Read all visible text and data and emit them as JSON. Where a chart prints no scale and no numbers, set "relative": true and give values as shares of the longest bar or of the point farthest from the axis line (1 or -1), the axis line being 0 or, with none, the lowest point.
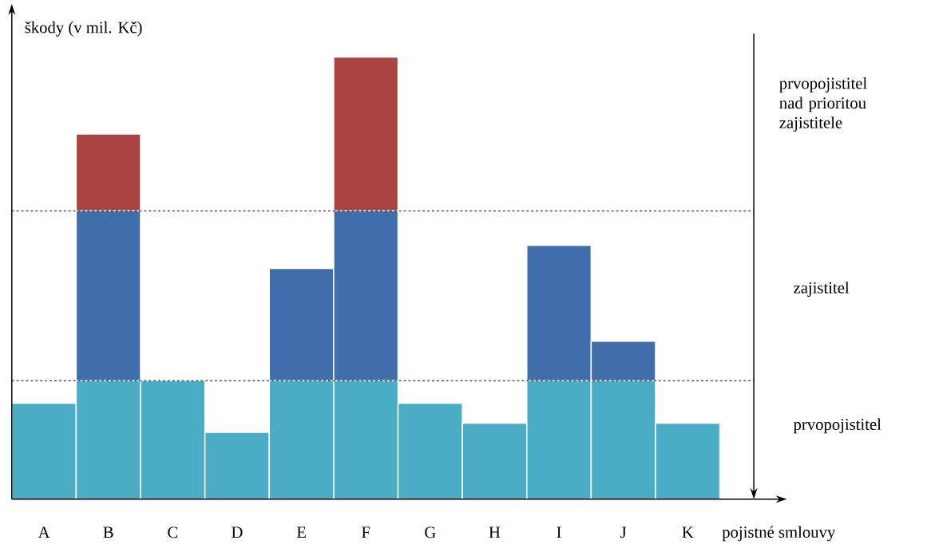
{
  "chart_data": {
    "type": "bar",
    "stacked": true,
    "relative": true,
    "xlabel": "pojistné smlouvy",
    "ylabel": "škody (v mil. Kč)",
    "categories": [
      "A",
      "B",
      "C",
      "D",
      "E",
      "F",
      "G",
      "H",
      "I",
      "J",
      "K"
    ],
    "series": [
      {
        "name": "prvopojistitel",
        "color": "#4bacc6",
        "values": [
          0.217,
          0.268,
          0.268,
          0.151,
          0.268,
          0.268,
          0.217,
          0.172,
          0.268,
          0.268,
          0.172
        ]
      },
      {
        "name": "zajistitel",
        "color": "#3f6eab",
        "values": [
          null,
          0.384,
          null,
          null,
          0.254,
          0.384,
          null,
          null,
          0.306,
          0.089,
          null
        ]
      },
      {
        "name": "prvopojistitel nad prioritou zajistitele",
        "color": "#a94442",
        "values": [
          null,
          0.174,
          null,
          null,
          null,
          0.348,
          null,
          null,
          null,
          null,
          null
        ]
      }
    ],
    "ref_lines": [
      {
        "axis": "y",
        "value": 0.268,
        "line_style": "dashed"
      },
      {
        "axis": "y",
        "value": 0.652,
        "line_style": "dashed"
      }
    ]
  }
}
